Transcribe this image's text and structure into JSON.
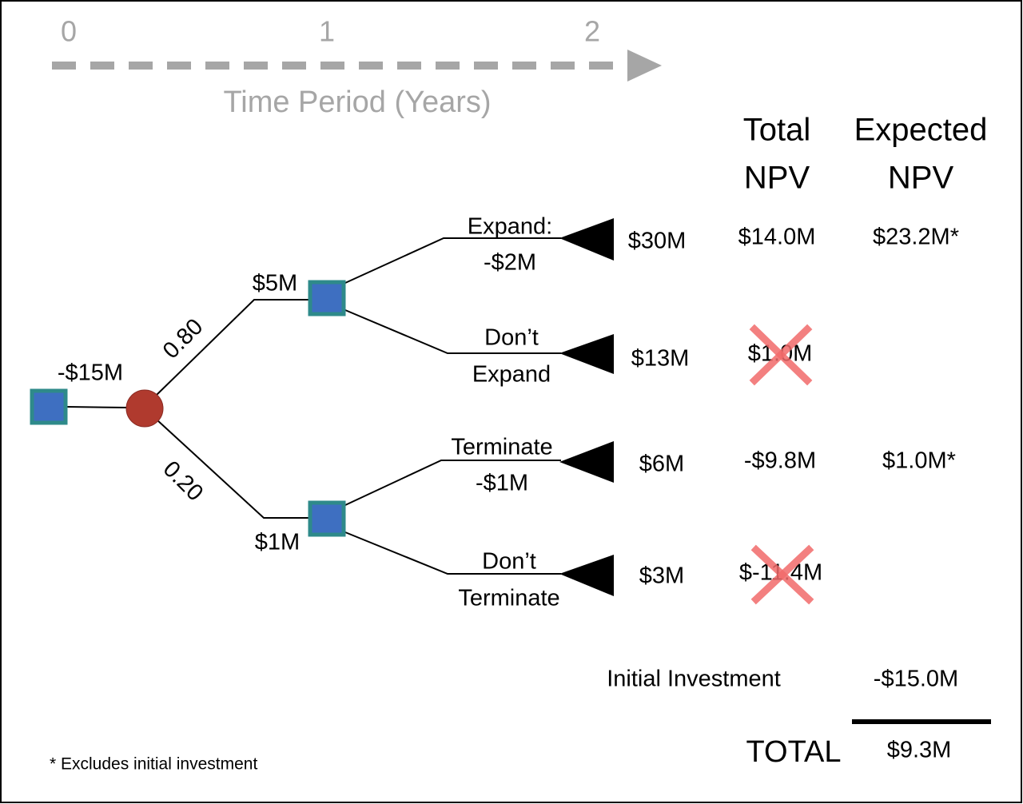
{
  "timeline": {
    "ticks": [
      "0",
      "1",
      "2"
    ],
    "label": "Time Period (Years)"
  },
  "columns": {
    "total_npv": [
      "Total",
      "NPV"
    ],
    "expected_npv": [
      "Expected",
      "NPV"
    ]
  },
  "root": {
    "label": "-$15M"
  },
  "chance": {
    "branches": [
      {
        "probability": "0.80",
        "value": "$5M"
      },
      {
        "probability": "0.20",
        "value": "$1M"
      }
    ]
  },
  "outcomes": [
    {
      "decision": [
        "Expand:",
        "-$2M"
      ],
      "payoff": "$30M",
      "total_npv": "$14.0M",
      "expected_npv": "$23.2M*"
    },
    {
      "decision": [
        "Don’t",
        "Expand"
      ],
      "payoff": "$13M",
      "total_npv": "$1.0M"
    },
    {
      "decision": [
        "Terminate",
        "-$1M"
      ],
      "payoff": "$6M",
      "total_npv": "-$9.8M",
      "expected_npv": "$1.0M*"
    },
    {
      "decision": [
        "Don’t",
        "Terminate"
      ],
      "payoff": "$3M",
      "total_npv": "$-11.4M"
    }
  ],
  "summary": {
    "initial_investment_label": "Initial Investment",
    "initial_investment": "-$15.0M",
    "total_label": "TOTAL",
    "total": "$9.3M"
  },
  "footnote": "* Excludes initial investment"
}
